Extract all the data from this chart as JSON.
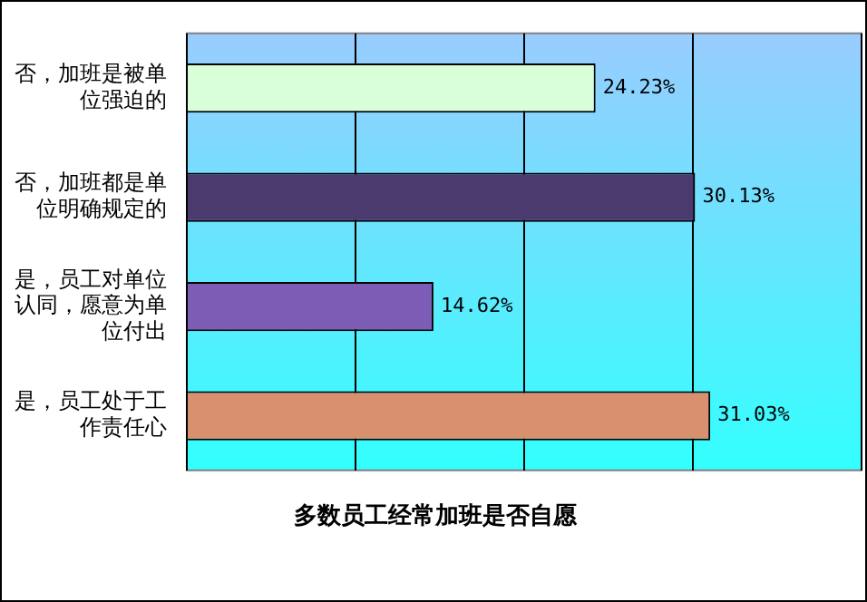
{
  "chart_data": {
    "type": "bar",
    "orientation": "horizontal",
    "title": "多数员工经常加班是否自愿",
    "categories": [
      "否，加班是被单位强迫的",
      "否，加班都是单位明确规定的",
      "是，员工对单位认同，愿意为单位付出",
      "是，员工处于工作责任心"
    ],
    "values": [
      24.23,
      30.13,
      14.62,
      31.03
    ],
    "colors": [
      "#d8ffd8",
      "#4a3a6e",
      "#7c5cb4",
      "#d8906e"
    ],
    "value_labels": [
      "24.23%",
      "30.13%",
      "14.62%",
      "31.03%"
    ],
    "xlim": [
      0,
      40
    ],
    "xticks": [
      {
        "value": 0,
        "label": null
      },
      {
        "value": 10,
        "label": null
      },
      {
        "value": 20,
        "label": null
      },
      {
        "value": 30,
        "label": null
      },
      {
        "value": 40,
        "label": null
      }
    ],
    "tick_labels": "y",
    "grid": "x",
    "legend": false
  }
}
